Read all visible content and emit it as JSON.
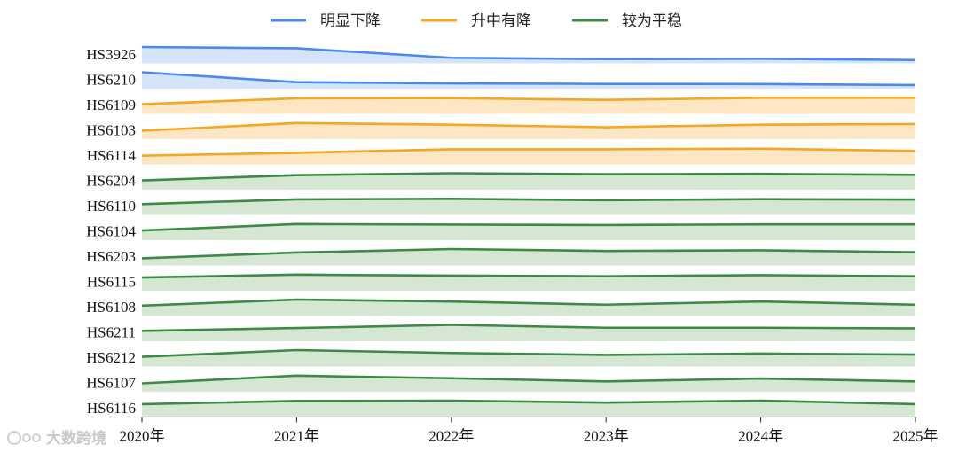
{
  "chart_data": {
    "type": "line",
    "x": [
      "2020年",
      "2021年",
      "2022年",
      "2023年",
      "2024年",
      "2025年"
    ],
    "legend": [
      {
        "key": "down",
        "label": "明显下降",
        "color": "#4a8ae8",
        "fill": "#d6e4fb"
      },
      {
        "key": "up",
        "label": "升中有降",
        "color": "#f5a623",
        "fill": "#fde6c4"
      },
      {
        "key": "flat",
        "label": "较为平稳",
        "color": "#3c8a45",
        "fill": "#d5e6d3"
      }
    ],
    "series": [
      {
        "name": "HS3926",
        "group": "down",
        "values": [
          1.0,
          0.92,
          0.32,
          0.24,
          0.26,
          0.18
        ]
      },
      {
        "name": "HS6210",
        "group": "down",
        "values": [
          1.0,
          0.38,
          0.3,
          0.27,
          0.26,
          0.2
        ]
      },
      {
        "name": "HS6109",
        "group": "up",
        "values": [
          0.58,
          0.95,
          0.96,
          0.85,
          0.98,
          0.98
        ]
      },
      {
        "name": "HS6103",
        "group": "up",
        "values": [
          0.5,
          0.98,
          0.88,
          0.72,
          0.88,
          0.92
        ]
      },
      {
        "name": "HS6114",
        "group": "up",
        "values": [
          0.52,
          0.7,
          0.92,
          0.92,
          0.96,
          0.82
        ]
      },
      {
        "name": "HS6204",
        "group": "flat",
        "values": [
          0.55,
          0.88,
          1.0,
          0.94,
          0.96,
          0.9
        ]
      },
      {
        "name": "HS6110",
        "group": "flat",
        "values": [
          0.65,
          0.95,
          0.98,
          0.9,
          0.96,
          0.94
        ]
      },
      {
        "name": "HS6104",
        "group": "flat",
        "values": [
          0.58,
          0.98,
          0.95,
          0.92,
          0.96,
          0.96
        ]
      },
      {
        "name": "HS6203",
        "group": "flat",
        "values": [
          0.42,
          0.78,
          1.0,
          0.88,
          0.92,
          0.8
        ]
      },
      {
        "name": "HS6115",
        "group": "flat",
        "values": [
          0.8,
          0.98,
          0.92,
          0.88,
          0.95,
          0.88
        ]
      },
      {
        "name": "HS6108",
        "group": "flat",
        "values": [
          0.62,
          1.0,
          0.88,
          0.68,
          0.88,
          0.68
        ]
      },
      {
        "name": "HS6211",
        "group": "flat",
        "values": [
          0.62,
          0.8,
          1.0,
          0.82,
          0.82,
          0.78
        ]
      },
      {
        "name": "HS6212",
        "group": "flat",
        "values": [
          0.58,
          1.0,
          0.82,
          0.7,
          0.78,
          0.72
        ]
      },
      {
        "name": "HS6107",
        "group": "flat",
        "values": [
          0.5,
          0.98,
          0.82,
          0.62,
          0.8,
          0.62
        ]
      },
      {
        "name": "HS6116",
        "group": "flat",
        "values": [
          0.78,
          0.98,
          1.0,
          0.88,
          1.0,
          0.78
        ]
      }
    ],
    "grid": false
  },
  "watermark": "大数跨境"
}
